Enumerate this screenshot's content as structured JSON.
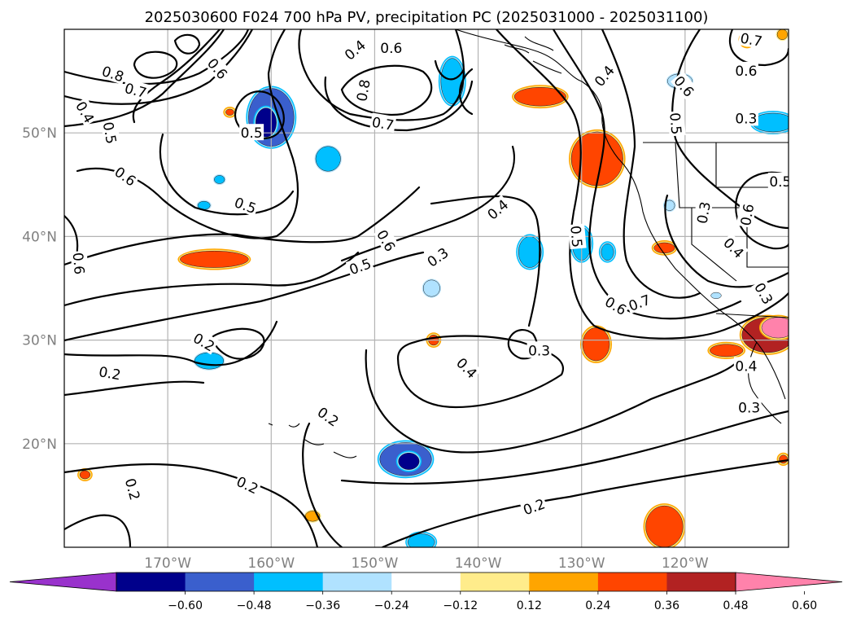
{
  "title": "2025030600 F024 700 hPa PV, precipitation PC (2025031000 - 2025031100)",
  "chart_data": {
    "type": "heatmap",
    "map": {
      "lon_range": [
        -180,
        -110
      ],
      "lat_range": [
        10,
        60
      ],
      "projection": "PlateCarree",
      "grid": true,
      "xticks": [
        {
          "value": -170,
          "label": "170°W"
        },
        {
          "value": -160,
          "label": "160°W"
        },
        {
          "value": -150,
          "label": "150°W"
        },
        {
          "value": -140,
          "label": "140°W"
        },
        {
          "value": -130,
          "label": "130°W"
        },
        {
          "value": -120,
          "label": "120°W"
        }
      ],
      "yticks": [
        {
          "value": 50,
          "label": "50°N"
        },
        {
          "value": 40,
          "label": "40°N"
        },
        {
          "value": 30,
          "label": "30°N"
        },
        {
          "value": 20,
          "label": "20°N"
        }
      ]
    },
    "pv_contour_labels": [
      {
        "text": "0.8",
        "lon": -175.3,
        "lat": 55.7,
        "angle": 18
      },
      {
        "text": "0.7",
        "lon": -173.1,
        "lat": 54.1,
        "angle": 15
      },
      {
        "text": "0.4",
        "lon": -178.0,
        "lat": 52.0,
        "angle": 60
      },
      {
        "text": "0.5",
        "lon": -175.6,
        "lat": 50.0,
        "angle": 80
      },
      {
        "text": "0.6",
        "lon": -165.2,
        "lat": 56.2,
        "angle": 50
      },
      {
        "text": "0.5",
        "lon": -161.9,
        "lat": 50.0,
        "angle": 0
      },
      {
        "text": "0.6",
        "lon": -174.1,
        "lat": 45.8,
        "angle": 35
      },
      {
        "text": "0.5",
        "lon": -162.5,
        "lat": 43.0,
        "angle": 20
      },
      {
        "text": "0.6",
        "lon": -178.6,
        "lat": 37.4,
        "angle": 85
      },
      {
        "text": "0.4",
        "lon": -151.9,
        "lat": 58.0,
        "angle": -40
      },
      {
        "text": "0.6",
        "lon": -148.4,
        "lat": 58.2,
        "angle": 0
      },
      {
        "text": "0.8",
        "lon": -151.1,
        "lat": 54.1,
        "angle": -80
      },
      {
        "text": "0.7",
        "lon": -149.2,
        "lat": 50.9,
        "angle": 10
      },
      {
        "text": "0.6",
        "lon": -148.9,
        "lat": 39.6,
        "angle": 60
      },
      {
        "text": "0.5",
        "lon": -151.4,
        "lat": 37.1,
        "angle": -20
      },
      {
        "text": "0.3",
        "lon": -143.9,
        "lat": 38.0,
        "angle": -35
      },
      {
        "text": "0.4",
        "lon": -138.1,
        "lat": 42.6,
        "angle": -40
      },
      {
        "text": "0.4",
        "lon": -127.8,
        "lat": 55.5,
        "angle": -50
      },
      {
        "text": "0.5",
        "lon": -130.5,
        "lat": 40.0,
        "angle": 85
      },
      {
        "text": "0.6",
        "lon": -126.7,
        "lat": 33.3,
        "angle": 30
      },
      {
        "text": "0.7",
        "lon": -124.4,
        "lat": 33.6,
        "angle": -20
      },
      {
        "text": "0.7",
        "lon": -113.6,
        "lat": 59.0,
        "angle": 10
      },
      {
        "text": "0.6",
        "lon": -114.1,
        "lat": 56.0,
        "angle": 0
      },
      {
        "text": "0.6",
        "lon": -120.1,
        "lat": 54.5,
        "angle": 50
      },
      {
        "text": "0.5",
        "lon": -120.9,
        "lat": 50.9,
        "angle": 85
      },
      {
        "text": "0.3",
        "lon": -114.1,
        "lat": 51.4,
        "angle": 0
      },
      {
        "text": "0.5",
        "lon": -110.8,
        "lat": 45.3,
        "angle": 0
      },
      {
        "text": "0.3",
        "lon": -118.2,
        "lat": 42.3,
        "angle": -80
      },
      {
        "text": "0.6",
        "lon": -114.0,
        "lat": 42.1,
        "angle": -80
      },
      {
        "text": "0.4",
        "lon": -115.3,
        "lat": 38.9,
        "angle": 45
      },
      {
        "text": "0.3",
        "lon": -112.4,
        "lat": 34.5,
        "angle": 60
      },
      {
        "text": "0.4",
        "lon": -114.1,
        "lat": 27.5,
        "angle": 0
      },
      {
        "text": "0.3",
        "lon": -113.8,
        "lat": 23.5,
        "angle": 0
      },
      {
        "text": "0.4",
        "lon": -141.1,
        "lat": 27.3,
        "angle": 45
      },
      {
        "text": "0.3",
        "lon": -134.1,
        "lat": 29.0,
        "angle": 0
      },
      {
        "text": "0.2",
        "lon": -166.5,
        "lat": 29.8,
        "angle": 30
      },
      {
        "text": "0.2",
        "lon": -175.6,
        "lat": 26.8,
        "angle": 10
      },
      {
        "text": "0.2",
        "lon": -154.5,
        "lat": 22.6,
        "angle": 35
      },
      {
        "text": "0.2",
        "lon": -173.4,
        "lat": 15.6,
        "angle": 75
      },
      {
        "text": "0.2",
        "lon": -162.3,
        "lat": 16.0,
        "angle": 25
      },
      {
        "text": "0.2",
        "lon": -134.6,
        "lat": 13.9,
        "angle": -20
      }
    ],
    "precip_blobs": [
      {
        "lon": -160.0,
        "lat": 51.5,
        "rx": 2.2,
        "ry": 2.8,
        "value": -0.45
      },
      {
        "lon": -160.5,
        "lat": 51.0,
        "rx": 1.0,
        "ry": 1.4,
        "value": -0.55
      },
      {
        "lon": -154.5,
        "lat": 47.5,
        "rx": 1.2,
        "ry": 1.2,
        "value": -0.3
      },
      {
        "lon": -165.0,
        "lat": 45.5,
        "rx": 0.5,
        "ry": 0.4,
        "value": -0.3
      },
      {
        "lon": -166.5,
        "lat": 43.0,
        "rx": 0.6,
        "ry": 0.4,
        "value": -0.3
      },
      {
        "lon": -142.5,
        "lat": 55.0,
        "rx": 1.1,
        "ry": 2.2,
        "value": -0.36
      },
      {
        "lon": -144.5,
        "lat": 35.0,
        "rx": 0.8,
        "ry": 0.8,
        "value": -0.24
      },
      {
        "lon": -135.0,
        "lat": 38.5,
        "rx": 1.1,
        "ry": 1.5,
        "value": -0.36
      },
      {
        "lon": -130.0,
        "lat": 39.3,
        "rx": 0.9,
        "ry": 1.6,
        "value": -0.36
      },
      {
        "lon": -127.5,
        "lat": 38.5,
        "rx": 0.6,
        "ry": 0.8,
        "value": -0.36
      },
      {
        "lon": -120.5,
        "lat": 55.0,
        "rx": 1.2,
        "ry": 0.7,
        "value": -0.24
      },
      {
        "lon": -111.5,
        "lat": 51.0,
        "rx": 2.0,
        "ry": 0.9,
        "value": -0.36
      },
      {
        "lon": -147.0,
        "lat": 18.5,
        "rx": 2.5,
        "ry": 1.6,
        "value": -0.45
      },
      {
        "lon": -146.7,
        "lat": 18.3,
        "rx": 1.0,
        "ry": 0.8,
        "value": -0.55
      },
      {
        "lon": -166.0,
        "lat": 28.0,
        "rx": 1.4,
        "ry": 0.8,
        "value": -0.3
      },
      {
        "lon": -145.5,
        "lat": 10.5,
        "rx": 1.3,
        "ry": 0.8,
        "value": -0.36
      },
      {
        "lon": -121.5,
        "lat": 43.0,
        "rx": 0.5,
        "ry": 0.5,
        "value": -0.24
      },
      {
        "lon": -117.0,
        "lat": 34.3,
        "rx": 0.5,
        "ry": 0.3,
        "value": -0.18
      },
      {
        "lon": -134.0,
        "lat": 53.5,
        "rx": 2.5,
        "ry": 0.9,
        "value": 0.4
      },
      {
        "lon": -128.5,
        "lat": 47.5,
        "rx": 2.5,
        "ry": 2.6,
        "value": 0.42
      },
      {
        "lon": -165.5,
        "lat": 37.8,
        "rx": 3.3,
        "ry": 0.8,
        "value": 0.4
      },
      {
        "lon": -128.6,
        "lat": 29.6,
        "rx": 1.3,
        "ry": 1.6,
        "value": 0.4
      },
      {
        "lon": -144.3,
        "lat": 30.0,
        "rx": 0.5,
        "ry": 0.5,
        "value": 0.4
      },
      {
        "lon": -116.0,
        "lat": 29.0,
        "rx": 1.6,
        "ry": 0.6,
        "value": 0.38
      },
      {
        "lon": -112.0,
        "lat": 30.5,
        "rx": 2.5,
        "ry": 1.7,
        "value": 0.55
      },
      {
        "lon": -111.0,
        "lat": 31.2,
        "rx": 1.6,
        "ry": 1.0,
        "value": 0.66
      },
      {
        "lon": -122.0,
        "lat": 12.0,
        "rx": 1.8,
        "ry": 2.0,
        "value": 0.42
      },
      {
        "lon": -122.0,
        "lat": 38.9,
        "rx": 1.0,
        "ry": 0.5,
        "value": 0.4
      },
      {
        "lon": -164.0,
        "lat": 52.0,
        "rx": 0.4,
        "ry": 0.3,
        "value": 0.4
      },
      {
        "lon": -178.0,
        "lat": 17.0,
        "rx": 0.5,
        "ry": 0.4,
        "value": 0.36
      },
      {
        "lon": -156.0,
        "lat": 13.0,
        "rx": 0.7,
        "ry": 0.5,
        "value": 0.3
      },
      {
        "lon": -114.0,
        "lat": 59.0,
        "rx": 0.6,
        "ry": 0.6,
        "value": 0.36
      },
      {
        "lon": -110.5,
        "lat": 18.5,
        "rx": 0.4,
        "ry": 0.4,
        "value": 0.36
      },
      {
        "lon": -110.6,
        "lat": 59.5,
        "rx": 0.5,
        "ry": 0.5,
        "value": 0.3
      }
    ],
    "colorbar": {
      "levels": [
        -0.72,
        -0.6,
        -0.48,
        -0.36,
        -0.24,
        -0.12,
        0.12,
        0.24,
        0.36,
        0.48,
        0.6,
        0.72
      ],
      "colors": [
        "#9932cc",
        "#00008b",
        "#3a5fcd",
        "#00bfff",
        "#b0e2ff",
        "#ffffff",
        "#ffec8b",
        "#ffa500",
        "#ff4500",
        "#b22222",
        "#ff82ab"
      ],
      "tick_labels": [
        "−0.60",
        "−0.48",
        "−0.36",
        "−0.24",
        "−0.12",
        "0.12",
        "0.24",
        "0.36",
        "0.48",
        "0.60"
      ],
      "extend": "both"
    }
  }
}
